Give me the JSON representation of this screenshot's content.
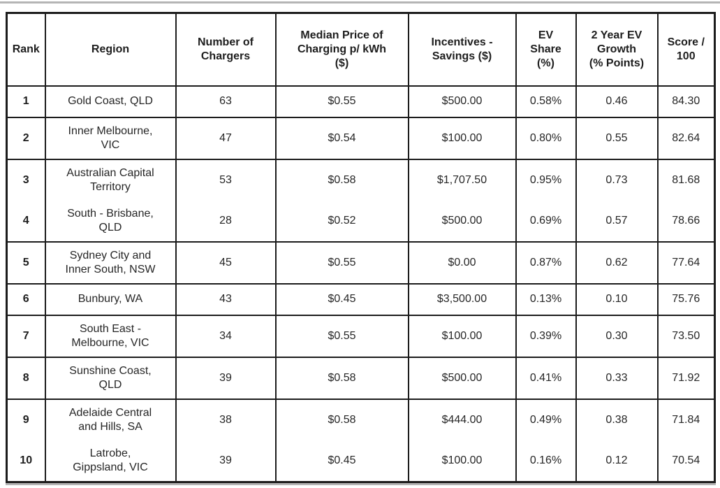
{
  "chart_data": {
    "type": "table",
    "columns": [
      {
        "key": "rank",
        "label": "Rank"
      },
      {
        "key": "region",
        "label": "Region"
      },
      {
        "key": "chargers",
        "label": "Number of\nChargers"
      },
      {
        "key": "price",
        "label": "Median Price of\nCharging p/ kWh\n($)"
      },
      {
        "key": "incentives",
        "label": "Incentives -\nSavings ($)"
      },
      {
        "key": "ev_share",
        "label": "EV\nShare\n(%)"
      },
      {
        "key": "growth",
        "label": "2 Year EV\nGrowth\n(% Points)"
      },
      {
        "key": "score",
        "label": "Score /\n100"
      }
    ],
    "rows": [
      {
        "rank": "1",
        "region": "Gold Coast, QLD",
        "chargers": "63",
        "price": "$0.55",
        "incentives": "$500.00",
        "ev_share": "0.58%",
        "growth": "0.46",
        "score": "84.30"
      },
      {
        "rank": "2",
        "region": "Inner Melbourne,\nVIC",
        "chargers": "47",
        "price": "$0.54",
        "incentives": "$100.00",
        "ev_share": "0.80%",
        "growth": "0.55",
        "score": "82.64"
      },
      {
        "rank": "3",
        "region": "Australian Capital\nTerritory",
        "chargers": "53",
        "price": "$0.58",
        "incentives": "$1,707.50",
        "ev_share": "0.95%",
        "growth": "0.73",
        "score": "81.68"
      },
      {
        "rank": "4",
        "region": "South - Brisbane,\nQLD",
        "chargers": "28",
        "price": "$0.52",
        "incentives": "$500.00",
        "ev_share": "0.69%",
        "growth": "0.57",
        "score": "78.66"
      },
      {
        "rank": "5",
        "region": "Sydney City and\nInner South, NSW",
        "chargers": "45",
        "price": "$0.55",
        "incentives": "$0.00",
        "ev_share": "0.87%",
        "growth": "0.62",
        "score": "77.64"
      },
      {
        "rank": "6",
        "region": "Bunbury, WA",
        "chargers": "43",
        "price": "$0.45",
        "incentives": "$3,500.00",
        "ev_share": "0.13%",
        "growth": "0.10",
        "score": "75.76"
      },
      {
        "rank": "7",
        "region": "South East -\nMelbourne, VIC",
        "chargers": "34",
        "price": "$0.55",
        "incentives": "$100.00",
        "ev_share": "0.39%",
        "growth": "0.30",
        "score": "73.50"
      },
      {
        "rank": "8",
        "region": "Sunshine Coast,\nQLD",
        "chargers": "39",
        "price": "$0.58",
        "incentives": "$500.00",
        "ev_share": "0.41%",
        "growth": "0.33",
        "score": "71.92"
      },
      {
        "rank": "9",
        "region": "Adelaide Central\nand Hills, SA",
        "chargers": "38",
        "price": "$0.58",
        "incentives": "$444.00",
        "ev_share": "0.49%",
        "growth": "0.38",
        "score": "71.84"
      },
      {
        "rank": "10",
        "region": "Latrobe,\nGippsland, VIC",
        "chargers": "39",
        "price": "$0.45",
        "incentives": "$100.00",
        "ev_share": "0.16%",
        "growth": "0.12",
        "score": "70.54"
      }
    ]
  },
  "colors": {
    "border": "#1c1c1c",
    "text": "#222222",
    "cutoff_line": "#b5b5b5",
    "background": "#ffffff"
  }
}
